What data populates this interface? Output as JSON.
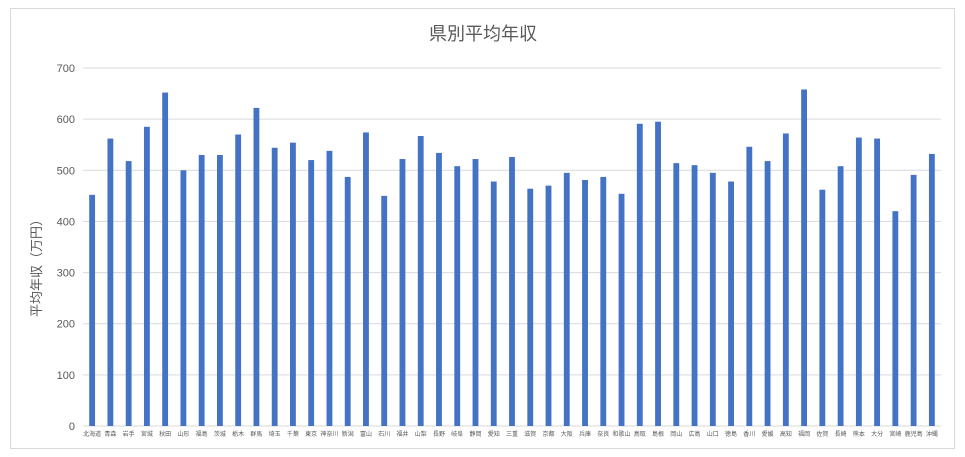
{
  "chart_data": {
    "type": "bar",
    "title": "県別平均年収",
    "xlabel": "",
    "ylabel": "平均年収（万円）",
    "ylim": [
      0,
      700
    ],
    "yticks": [
      0,
      100,
      200,
      300,
      400,
      500,
      600,
      700
    ],
    "grid": true,
    "legend": "none",
    "color": "#4472c4",
    "categories": [
      "北海道",
      "青森",
      "岩手",
      "宮城",
      "秋田",
      "山形",
      "福島",
      "茨城",
      "栃木",
      "群馬",
      "埼玉",
      "千葉",
      "東京",
      "神奈川",
      "新潟",
      "富山",
      "石川",
      "福井",
      "山梨",
      "長野",
      "岐阜",
      "静岡",
      "愛知",
      "三重",
      "滋賀",
      "京都",
      "大阪",
      "兵庫",
      "奈良",
      "和歌山",
      "鳥取",
      "島根",
      "岡山",
      "広島",
      "山口",
      "徳島",
      "香川",
      "愛媛",
      "高知",
      "福岡",
      "佐賀",
      "長崎",
      "熊本",
      "大分",
      "宮崎",
      "鹿児島",
      "沖縄"
    ],
    "values": [
      452,
      562,
      518,
      585,
      652,
      500,
      530,
      530,
      570,
      622,
      544,
      554,
      520,
      538,
      487,
      574,
      450,
      522,
      567,
      534,
      508,
      522,
      478,
      526,
      464,
      470,
      495,
      481,
      487,
      454,
      591,
      595,
      514,
      510,
      495,
      478,
      546,
      518,
      572,
      658,
      462,
      508,
      564,
      562,
      420,
      491,
      532
    ]
  }
}
